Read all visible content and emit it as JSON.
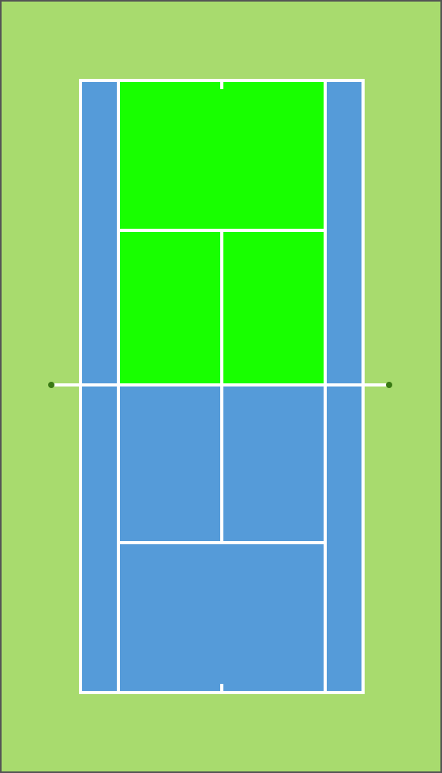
{
  "colors": {
    "surround": "#a8db6e",
    "court": "#559bd9",
    "highlight": "#18ff00",
    "line": "#ffffff",
    "net_post": "#3a7a14",
    "frame_border": "#555555"
  },
  "court": {
    "highlighted_area": "far-half-singles",
    "orientation": "vertical",
    "has_net": true,
    "has_center_marks": true
  }
}
